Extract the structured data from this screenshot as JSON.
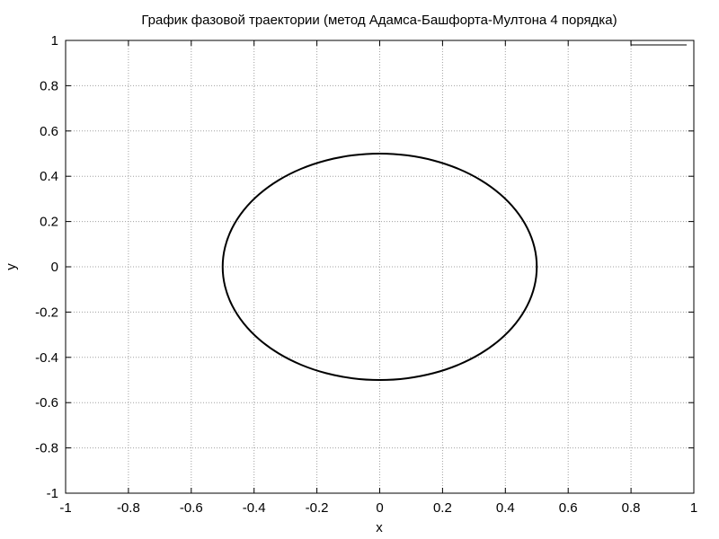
{
  "chart_data": {
    "type": "line",
    "title": "График фазовой траектории (метод Адамса-Башфорта-Мултона 4 порядка)",
    "xlabel": "x",
    "ylabel": "y",
    "xlim": [
      -1,
      1
    ],
    "ylim": [
      -1,
      1
    ],
    "grid": true,
    "legend": "top-right",
    "xticks": [
      "-1",
      "-0.8",
      "-0.6",
      "-0.4",
      "-0.2",
      "0",
      "0.2",
      "0.4",
      "0.6",
      "0.8",
      "1"
    ],
    "yticks": [
      "-1",
      "-0.8",
      "-0.6",
      "-0.4",
      "-0.2",
      "0",
      "0.2",
      "0.4",
      "0.6",
      "0.8",
      "1"
    ],
    "series": [
      {
        "color": "#000000",
        "x": [
          0.5,
          0.4924,
          0.4698,
          0.433,
          0.383,
          0.3214,
          0.25,
          0.171,
          0.0868,
          0,
          -0.0868,
          -0.171,
          -0.25,
          -0.3214,
          -0.383,
          -0.433,
          -0.4698,
          -0.4924,
          -0.5,
          -0.4924,
          -0.4698,
          -0.433,
          -0.383,
          -0.3214,
          -0.25,
          -0.171,
          -0.0868,
          0,
          0.0868,
          0.171,
          0.25,
          0.3214,
          0.383,
          0.433,
          0.4698,
          0.4924,
          0.5
        ],
        "y": [
          0,
          0.0868,
          0.171,
          0.25,
          0.3214,
          0.383,
          0.433,
          0.4698,
          0.4924,
          0.5,
          0.4924,
          0.4698,
          0.433,
          0.383,
          0.3214,
          0.25,
          0.171,
          0.0868,
          0,
          -0.0868,
          -0.171,
          -0.25,
          -0.3214,
          -0.383,
          -0.433,
          -0.4698,
          -0.4924,
          -0.5,
          -0.4924,
          -0.4698,
          -0.433,
          -0.383,
          -0.3214,
          -0.25,
          -0.171,
          -0.0868,
          0
        ]
      }
    ]
  }
}
